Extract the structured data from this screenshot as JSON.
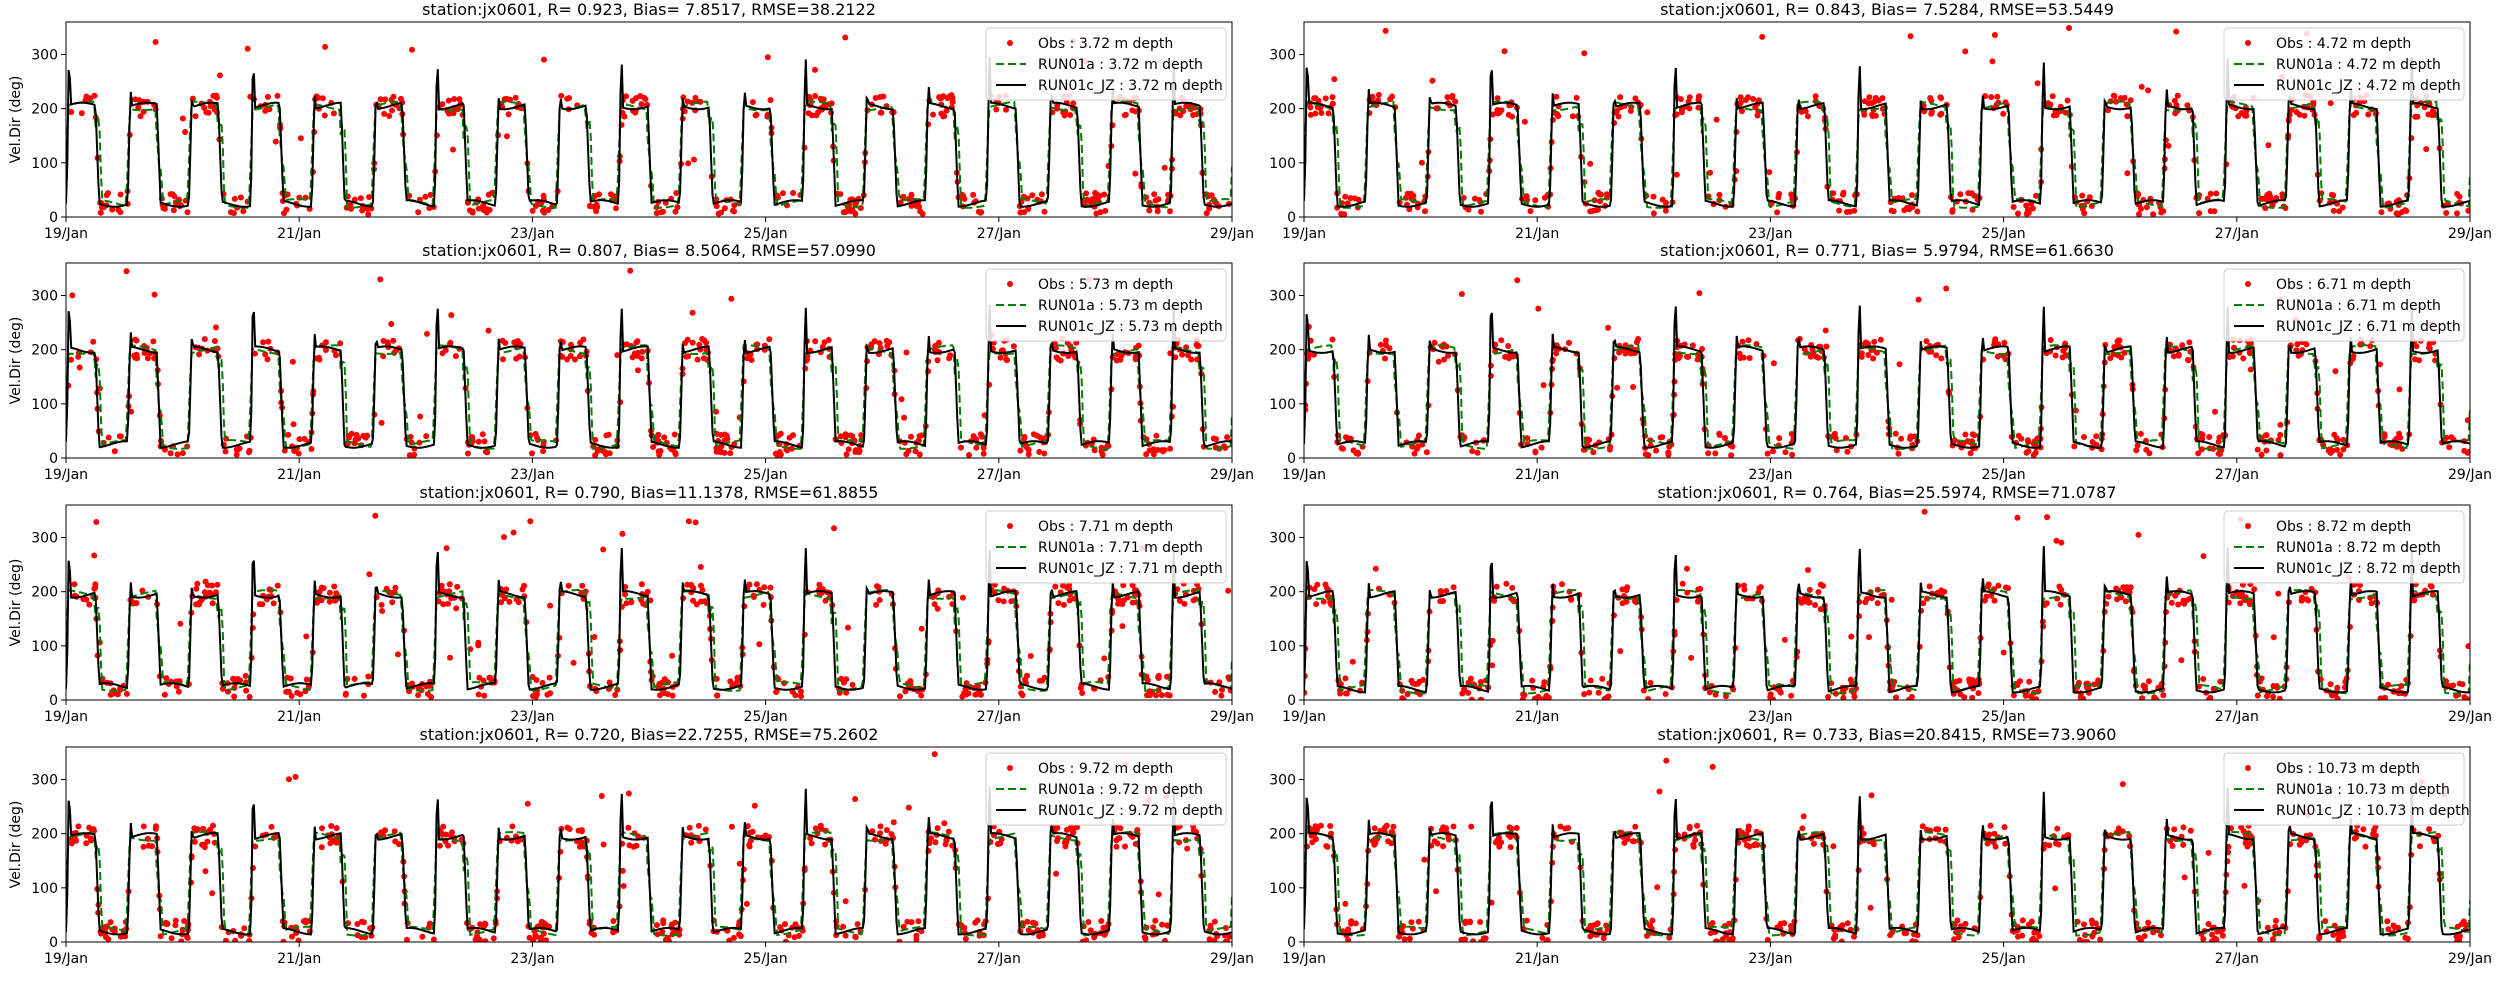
{
  "figure": {
    "background": "#ffffff"
  },
  "colors": {
    "obs": "#ff0000",
    "run01a": "#008000",
    "run01c": "#000000",
    "axis": "#000000"
  },
  "chart_data": [
    {
      "type": "line",
      "title": "station:jx0601, R= 0.923, Bias= 7.8517, RMSE=38.2122",
      "ylabel": "Vel.Dir (deg)",
      "xlabel": "",
      "ylim": [
        0,
        360
      ],
      "yticks": [
        0,
        100,
        200,
        300
      ],
      "xlim": [
        0,
        10
      ],
      "xtick_labels": [
        "19/Jan",
        "21/Jan",
        "23/Jan",
        "25/Jan",
        "27/Jan",
        "29/Jan"
      ],
      "legend_position": "top-right",
      "series": [
        {
          "name": "Obs : 3.72 m depth",
          "style": "points"
        },
        {
          "name": "RUN01a : 3.72 m depth",
          "style": "dashed"
        },
        {
          "name": "RUN01c_JZ : 3.72 m depth",
          "style": "solid"
        }
      ],
      "pattern": {
        "ebb_deg": 205,
        "flood_deg": 25,
        "cycles": 19
      }
    },
    {
      "type": "line",
      "title": "station:jx0601, R= 0.843, Bias= 7.5284, RMSE=53.5449",
      "ylabel": "",
      "xlabel": "",
      "ylim": [
        0,
        360
      ],
      "yticks": [
        0,
        100,
        200,
        300
      ],
      "xlim": [
        0,
        10
      ],
      "xtick_labels": [
        "19/Jan",
        "21/Jan",
        "23/Jan",
        "25/Jan",
        "27/Jan",
        "29/Jan"
      ],
      "legend_position": "top-right",
      "series": [
        {
          "name": "Obs : 4.72 m depth",
          "style": "points"
        },
        {
          "name": "RUN01a : 4.72 m depth",
          "style": "dashed"
        },
        {
          "name": "RUN01c_JZ : 4.72 m depth",
          "style": "solid"
        }
      ],
      "pattern": {
        "ebb_deg": 205,
        "flood_deg": 25,
        "cycles": 19
      }
    },
    {
      "type": "line",
      "title": "station:jx0601, R= 0.807, Bias= 8.5064, RMSE=57.0990",
      "ylabel": "Vel.Dir (deg)",
      "xlabel": "",
      "ylim": [
        0,
        360
      ],
      "yticks": [
        0,
        100,
        200,
        300
      ],
      "xlim": [
        0,
        10
      ],
      "xtick_labels": [
        "19/Jan",
        "21/Jan",
        "23/Jan",
        "25/Jan",
        "27/Jan",
        "29/Jan"
      ],
      "legend_position": "top-right",
      "series": [
        {
          "name": "Obs : 5.73 m depth",
          "style": "points"
        },
        {
          "name": "RUN01a : 5.73 m depth",
          "style": "dashed"
        },
        {
          "name": "RUN01c_JZ : 5.73 m depth",
          "style": "solid"
        }
      ],
      "pattern": {
        "ebb_deg": 200,
        "flood_deg": 25,
        "cycles": 19
      }
    },
    {
      "type": "line",
      "title": "station:jx0601, R= 0.771, Bias= 5.9794, RMSE=61.6630",
      "ylabel": "",
      "xlabel": "",
      "ylim": [
        0,
        360
      ],
      "yticks": [
        0,
        100,
        200,
        300
      ],
      "xlim": [
        0,
        10
      ],
      "xtick_labels": [
        "19/Jan",
        "21/Jan",
        "23/Jan",
        "25/Jan",
        "27/Jan",
        "29/Jan"
      ],
      "legend_position": "top-right",
      "series": [
        {
          "name": "Obs : 6.71 m depth",
          "style": "points"
        },
        {
          "name": "RUN01a : 6.71 m depth",
          "style": "dashed"
        },
        {
          "name": "RUN01c_JZ : 6.71 m depth",
          "style": "solid"
        }
      ],
      "pattern": {
        "ebb_deg": 200,
        "flood_deg": 25,
        "cycles": 19
      }
    },
    {
      "type": "line",
      "title": "station:jx0601, R= 0.790, Bias=11.1378, RMSE=61.8855",
      "ylabel": "Vel.Dir (deg)",
      "xlabel": "",
      "ylim": [
        0,
        360
      ],
      "yticks": [
        0,
        100,
        200,
        300
      ],
      "xlim": [
        0,
        10
      ],
      "xtick_labels": [
        "19/Jan",
        "21/Jan",
        "23/Jan",
        "25/Jan",
        "27/Jan",
        "29/Jan"
      ],
      "legend_position": "top-right",
      "series": [
        {
          "name": "Obs : 7.71 m depth",
          "style": "points"
        },
        {
          "name": "RUN01a : 7.71 m depth",
          "style": "dashed"
        },
        {
          "name": "RUN01c_JZ : 7.71 m depth",
          "style": "solid"
        }
      ],
      "pattern": {
        "ebb_deg": 195,
        "flood_deg": 25,
        "cycles": 19
      }
    },
    {
      "type": "line",
      "title": "station:jx0601, R= 0.764, Bias=25.5974, RMSE=71.0787",
      "ylabel": "",
      "xlabel": "",
      "ylim": [
        0,
        360
      ],
      "yticks": [
        0,
        100,
        200,
        300
      ],
      "xlim": [
        0,
        10
      ],
      "xtick_labels": [
        "19/Jan",
        "21/Jan",
        "23/Jan",
        "25/Jan",
        "27/Jan",
        "29/Jan"
      ],
      "legend_position": "top-right",
      "series": [
        {
          "name": "Obs : 8.72 m depth",
          "style": "points"
        },
        {
          "name": "RUN01a : 8.72 m depth",
          "style": "dashed"
        },
        {
          "name": "RUN01c_JZ : 8.72 m depth",
          "style": "solid"
        }
      ],
      "pattern": {
        "ebb_deg": 195,
        "flood_deg": 20,
        "cycles": 19
      }
    },
    {
      "type": "line",
      "title": "station:jx0601, R= 0.720, Bias=22.7255, RMSE=75.2602",
      "ylabel": "Vel.Dir (deg)",
      "xlabel": "",
      "ylim": [
        0,
        360
      ],
      "yticks": [
        0,
        100,
        200,
        300
      ],
      "xlim": [
        0,
        10
      ],
      "xtick_labels": [
        "19/Jan",
        "21/Jan",
        "23/Jan",
        "25/Jan",
        "27/Jan",
        "29/Jan"
      ],
      "legend_position": "top-right",
      "series": [
        {
          "name": "Obs : 9.72 m depth",
          "style": "points"
        },
        {
          "name": "RUN01a : 9.72 m depth",
          "style": "dashed"
        },
        {
          "name": "RUN01c_JZ : 9.72 m depth",
          "style": "solid"
        }
      ],
      "pattern": {
        "ebb_deg": 195,
        "flood_deg": 20,
        "cycles": 19
      }
    },
    {
      "type": "line",
      "title": "station:jx0601, R= 0.733, Bias=20.8415, RMSE=73.9060",
      "ylabel": "",
      "xlabel": "",
      "ylim": [
        0,
        360
      ],
      "yticks": [
        0,
        100,
        200,
        300
      ],
      "xlim": [
        0,
        10
      ],
      "xtick_labels": [
        "19/Jan",
        "21/Jan",
        "23/Jan",
        "25/Jan",
        "27/Jan",
        "29/Jan"
      ],
      "legend_position": "top-right",
      "series": [
        {
          "name": "Obs : 10.73 m depth",
          "style": "points"
        },
        {
          "name": "RUN01a : 10.73 m depth",
          "style": "dashed"
        },
        {
          "name": "RUN01c_JZ : 10.73 m depth",
          "style": "solid"
        }
      ],
      "pattern": {
        "ebb_deg": 195,
        "flood_deg": 20,
        "cycles": 19
      }
    }
  ]
}
